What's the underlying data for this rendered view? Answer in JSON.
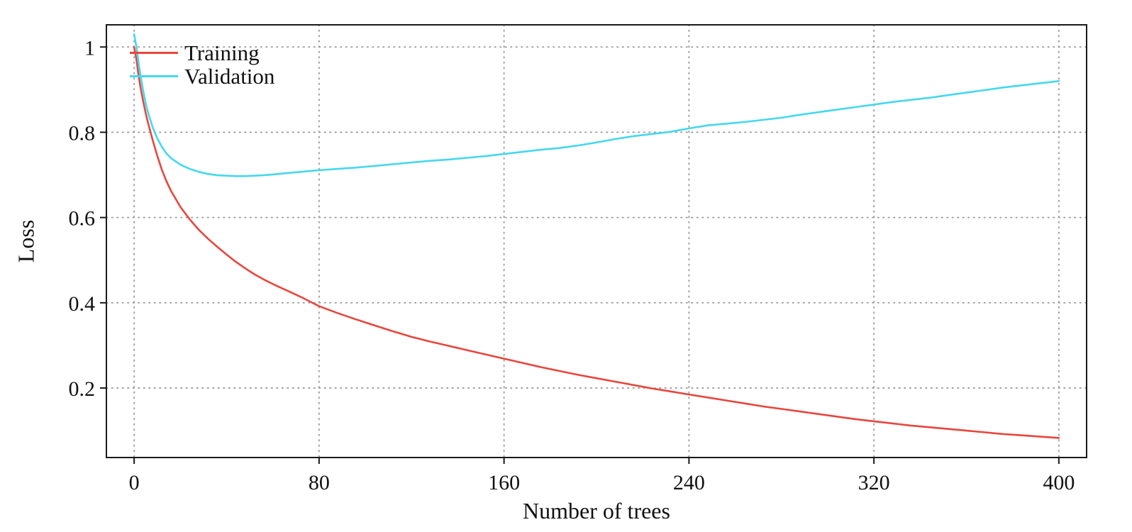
{
  "colors": {
    "background": "#ffffff",
    "grid": "#9b9b9b",
    "frame": "#1a1a1a",
    "text": "#111111",
    "training": "#e8463d",
    "validation": "#45d8ec"
  },
  "chart_data": {
    "type": "line",
    "title": "",
    "xlabel": "Number of trees",
    "ylabel": "Loss",
    "xlim": [
      -12,
      412
    ],
    "ylim": [
      0.037,
      1.052
    ],
    "xticks": [
      0,
      80,
      160,
      240,
      320,
      400
    ],
    "xtick_labels": [
      "0",
      "80",
      "160",
      "240",
      "320",
      "400"
    ],
    "yticks": [
      0.2,
      0.4,
      0.6,
      0.8,
      1
    ],
    "ytick_labels": [
      "0.2",
      "0.4",
      "0.6",
      "0.8",
      "1"
    ],
    "grid": true,
    "legend_position": "top-left",
    "series": [
      {
        "name": "Training",
        "color": "#e8463d",
        "points": [
          [
            0,
            1.0
          ],
          [
            1,
            0.97
          ],
          [
            2,
            0.93
          ],
          [
            3,
            0.898
          ],
          [
            4,
            0.87
          ],
          [
            5,
            0.845
          ],
          [
            6,
            0.822
          ],
          [
            8,
            0.782
          ],
          [
            10,
            0.745
          ],
          [
            12,
            0.712
          ],
          [
            14,
            0.685
          ],
          [
            16,
            0.662
          ],
          [
            20,
            0.625
          ],
          [
            24,
            0.596
          ],
          [
            28,
            0.571
          ],
          [
            32,
            0.55
          ],
          [
            36,
            0.531
          ],
          [
            40,
            0.513
          ],
          [
            44,
            0.496
          ],
          [
            48,
            0.481
          ],
          [
            52,
            0.467
          ],
          [
            56,
            0.455
          ],
          [
            60,
            0.444
          ],
          [
            64,
            0.434
          ],
          [
            68,
            0.424
          ],
          [
            72,
            0.414
          ],
          [
            76,
            0.403
          ],
          [
            80,
            0.392
          ],
          [
            88,
            0.376
          ],
          [
            96,
            0.361
          ],
          [
            104,
            0.347
          ],
          [
            112,
            0.333
          ],
          [
            120,
            0.32
          ],
          [
            128,
            0.309
          ],
          [
            136,
            0.299
          ],
          [
            144,
            0.289
          ],
          [
            152,
            0.279
          ],
          [
            160,
            0.269
          ],
          [
            168,
            0.259
          ],
          [
            176,
            0.249
          ],
          [
            184,
            0.24
          ],
          [
            192,
            0.231
          ],
          [
            200,
            0.223
          ],
          [
            208,
            0.215
          ],
          [
            216,
            0.207
          ],
          [
            224,
            0.199
          ],
          [
            232,
            0.192
          ],
          [
            240,
            0.185
          ],
          [
            248,
            0.178
          ],
          [
            256,
            0.171
          ],
          [
            264,
            0.164
          ],
          [
            272,
            0.157
          ],
          [
            280,
            0.151
          ],
          [
            288,
            0.145
          ],
          [
            296,
            0.139
          ],
          [
            304,
            0.133
          ],
          [
            312,
            0.127
          ],
          [
            320,
            0.122
          ],
          [
            328,
            0.117
          ],
          [
            336,
            0.112
          ],
          [
            344,
            0.108
          ],
          [
            352,
            0.104
          ],
          [
            360,
            0.1
          ],
          [
            368,
            0.096
          ],
          [
            376,
            0.092
          ],
          [
            384,
            0.089
          ],
          [
            392,
            0.086
          ],
          [
            400,
            0.083
          ]
        ]
      },
      {
        "name": "Validation",
        "color": "#45d8ec",
        "points": [
          [
            0,
            1.03
          ],
          [
            1,
            1.0
          ],
          [
            2,
            0.96
          ],
          [
            3,
            0.925
          ],
          [
            4,
            0.895
          ],
          [
            5,
            0.868
          ],
          [
            6,
            0.846
          ],
          [
            8,
            0.812
          ],
          [
            10,
            0.786
          ],
          [
            12,
            0.766
          ],
          [
            14,
            0.75
          ],
          [
            16,
            0.739
          ],
          [
            20,
            0.724
          ],
          [
            24,
            0.714
          ],
          [
            28,
            0.707
          ],
          [
            32,
            0.702
          ],
          [
            36,
            0.699
          ],
          [
            40,
            0.698
          ],
          [
            44,
            0.697
          ],
          [
            48,
            0.697
          ],
          [
            52,
            0.698
          ],
          [
            56,
            0.699
          ],
          [
            60,
            0.701
          ],
          [
            64,
            0.703
          ],
          [
            68,
            0.705
          ],
          [
            72,
            0.707
          ],
          [
            76,
            0.709
          ],
          [
            80,
            0.711
          ],
          [
            88,
            0.714
          ],
          [
            96,
            0.717
          ],
          [
            104,
            0.721
          ],
          [
            112,
            0.725
          ],
          [
            120,
            0.729
          ],
          [
            128,
            0.733
          ],
          [
            136,
            0.736
          ],
          [
            144,
            0.74
          ],
          [
            152,
            0.744
          ],
          [
            160,
            0.749
          ],
          [
            168,
            0.754
          ],
          [
            176,
            0.759
          ],
          [
            184,
            0.763
          ],
          [
            192,
            0.769
          ],
          [
            200,
            0.776
          ],
          [
            208,
            0.784
          ],
          [
            216,
            0.791
          ],
          [
            224,
            0.796
          ],
          [
            232,
            0.801
          ],
          [
            240,
            0.809
          ],
          [
            248,
            0.816
          ],
          [
            256,
            0.82
          ],
          [
            264,
            0.824
          ],
          [
            272,
            0.829
          ],
          [
            280,
            0.834
          ],
          [
            288,
            0.841
          ],
          [
            296,
            0.847
          ],
          [
            304,
            0.853
          ],
          [
            312,
            0.859
          ],
          [
            320,
            0.865
          ],
          [
            328,
            0.871
          ],
          [
            336,
            0.876
          ],
          [
            344,
            0.881
          ],
          [
            352,
            0.887
          ],
          [
            360,
            0.893
          ],
          [
            368,
            0.899
          ],
          [
            376,
            0.905
          ],
          [
            384,
            0.91
          ],
          [
            392,
            0.915
          ],
          [
            400,
            0.92
          ]
        ]
      }
    ]
  }
}
